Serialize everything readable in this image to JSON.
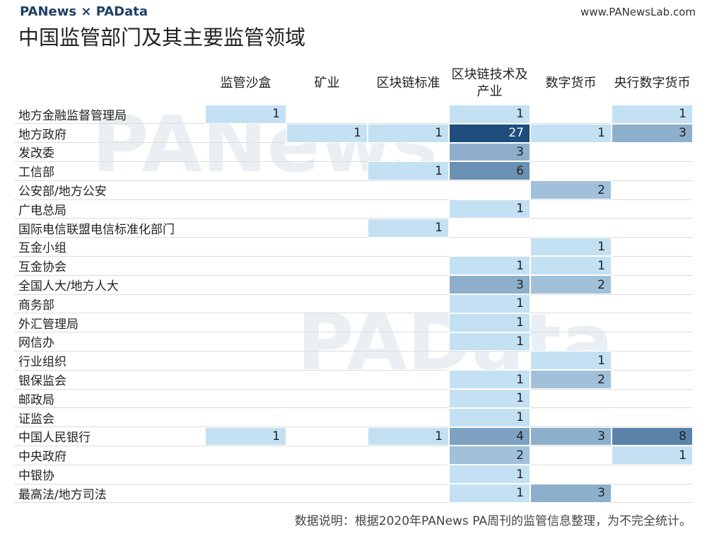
{
  "header": {
    "brand": "PANews × PAData",
    "site": "www.PANewsLab.com"
  },
  "chart_data": {
    "type": "heatmap",
    "title": "中国监管部门及其主要监管领域",
    "columns": [
      "监管沙盒",
      "矿业",
      "区块链标准",
      "区块链技术及产业",
      "数字货币",
      "央行数字货币"
    ],
    "categories": [
      "地方金融监督管理局",
      "地方政府",
      "发改委",
      "工信部",
      "公安部/地方公安",
      "广电总局",
      "国际电信联盟电信标准化部门",
      "互金小组",
      "互金协会",
      "全国人大/地方人大",
      "商务部",
      "外汇管理局",
      "网信办",
      "行业组织",
      "银保监会",
      "邮政局",
      "证监会",
      "中国人民银行",
      "中央政府",
      "中银协",
      "最高法/地方司法"
    ],
    "values": [
      [
        1,
        null,
        null,
        1,
        null,
        1
      ],
      [
        null,
        1,
        1,
        27,
        1,
        3
      ],
      [
        null,
        null,
        null,
        3,
        null,
        null
      ],
      [
        null,
        null,
        1,
        6,
        null,
        null
      ],
      [
        null,
        null,
        null,
        null,
        2,
        null
      ],
      [
        null,
        null,
        null,
        1,
        null,
        null
      ],
      [
        null,
        null,
        1,
        null,
        null,
        null
      ],
      [
        null,
        null,
        null,
        null,
        1,
        null
      ],
      [
        null,
        null,
        null,
        1,
        1,
        null
      ],
      [
        null,
        null,
        null,
        3,
        2,
        null
      ],
      [
        null,
        null,
        null,
        1,
        null,
        null
      ],
      [
        null,
        null,
        null,
        1,
        null,
        null
      ],
      [
        null,
        null,
        null,
        1,
        null,
        null
      ],
      [
        null,
        null,
        null,
        null,
        1,
        null
      ],
      [
        null,
        null,
        null,
        1,
        2,
        null
      ],
      [
        null,
        null,
        null,
        1,
        null,
        null
      ],
      [
        null,
        null,
        null,
        1,
        null,
        null
      ],
      [
        1,
        null,
        1,
        4,
        3,
        8
      ],
      [
        null,
        null,
        null,
        2,
        null,
        1
      ],
      [
        null,
        null,
        null,
        1,
        null,
        null
      ],
      [
        null,
        null,
        null,
        1,
        3,
        null
      ]
    ],
    "color_scale": [
      "#c4e0f3",
      "#1e4d7e"
    ],
    "note": "数据说明：根据2020年PANews PA周刊的监管信息整理，为不完全统计。",
    "watermarks": [
      "PANews",
      "PAData"
    ]
  }
}
